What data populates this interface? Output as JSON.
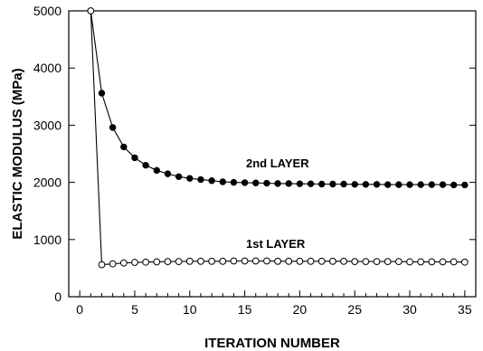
{
  "chart_data": {
    "type": "line",
    "title": "",
    "xlabel": "ITERATION NUMBER",
    "ylabel": "ELASTIC MODULUS (MPa)",
    "xlim": [
      -1,
      36
    ],
    "ylim": [
      0,
      5000
    ],
    "xticks": [
      0,
      5,
      10,
      15,
      20,
      25,
      30,
      35
    ],
    "yticks": [
      0,
      1000,
      2000,
      3000,
      4000,
      5000
    ],
    "grid": false,
    "legend": "none",
    "series": [
      {
        "name": "2nd LAYER",
        "marker": "filled-circle",
        "x": [
          1,
          2,
          3,
          4,
          5,
          6,
          7,
          8,
          9,
          10,
          11,
          12,
          13,
          14,
          15,
          16,
          17,
          18,
          19,
          20,
          21,
          22,
          23,
          24,
          25,
          26,
          27,
          28,
          29,
          30,
          31,
          32,
          33,
          34,
          35
        ],
        "y": [
          5000,
          3560,
          2960,
          2620,
          2430,
          2300,
          2210,
          2150,
          2100,
          2070,
          2050,
          2030,
          2010,
          2000,
          1995,
          1990,
          1985,
          1980,
          1980,
          1975,
          1975,
          1970,
          1970,
          1970,
          1965,
          1965,
          1965,
          1960,
          1960,
          1960,
          1960,
          1960,
          1960,
          1955,
          1955
        ]
      },
      {
        "name": "1st LAYER",
        "marker": "open-circle",
        "x": [
          1,
          2,
          3,
          4,
          5,
          6,
          7,
          8,
          9,
          10,
          11,
          12,
          13,
          14,
          15,
          16,
          17,
          18,
          19,
          20,
          21,
          22,
          23,
          24,
          25,
          26,
          27,
          28,
          29,
          30,
          31,
          32,
          33,
          34,
          35
        ],
        "y": [
          5000,
          560,
          575,
          590,
          600,
          605,
          610,
          615,
          615,
          620,
          620,
          620,
          620,
          625,
          625,
          625,
          625,
          620,
          620,
          620,
          620,
          620,
          620,
          620,
          615,
          615,
          615,
          615,
          615,
          610,
          610,
          610,
          610,
          610,
          605
        ]
      }
    ]
  }
}
